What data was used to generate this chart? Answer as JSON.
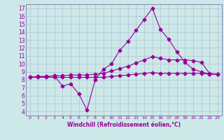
{
  "xlabel": "Windchill (Refroidissement éolien,°C)",
  "background_color": "#cce8e8",
  "line_color": "#990099",
  "x_hours": [
    0,
    1,
    2,
    3,
    4,
    5,
    6,
    7,
    8,
    9,
    10,
    11,
    12,
    13,
    14,
    15,
    16,
    17,
    18,
    19,
    20,
    21,
    22,
    23
  ],
  "series1": [
    8.3,
    8.4,
    8.4,
    8.5,
    7.2,
    7.5,
    6.2,
    4.2,
    8.0,
    9.3,
    10.0,
    11.7,
    12.8,
    14.2,
    15.6,
    17.0,
    14.3,
    13.1,
    11.5,
    10.2,
    9.3,
    9.0,
    8.7,
    8.7
  ],
  "series2": [
    8.3,
    8.4,
    8.4,
    8.5,
    8.5,
    8.6,
    8.6,
    8.6,
    8.7,
    8.8,
    9.1,
    9.4,
    9.7,
    10.1,
    10.5,
    10.9,
    10.7,
    10.5,
    10.5,
    10.5,
    10.4,
    10.2,
    8.8,
    8.7
  ],
  "series3": [
    8.3,
    8.3,
    8.3,
    8.3,
    8.3,
    8.3,
    8.3,
    8.3,
    8.3,
    8.3,
    8.4,
    8.5,
    8.6,
    8.7,
    8.8,
    8.9,
    8.8,
    8.8,
    8.8,
    8.8,
    8.8,
    8.8,
    8.7,
    8.7
  ],
  "ylim": [
    3.5,
    17.5
  ],
  "yticks": [
    4,
    5,
    6,
    7,
    8,
    9,
    10,
    11,
    12,
    13,
    14,
    15,
    16,
    17
  ],
  "xticks": [
    0,
    1,
    2,
    3,
    4,
    5,
    6,
    7,
    8,
    9,
    10,
    11,
    12,
    13,
    14,
    15,
    16,
    17,
    18,
    19,
    20,
    21,
    22,
    23
  ],
  "grid_color": "#aab8cc",
  "spine_color": "#7777aa"
}
